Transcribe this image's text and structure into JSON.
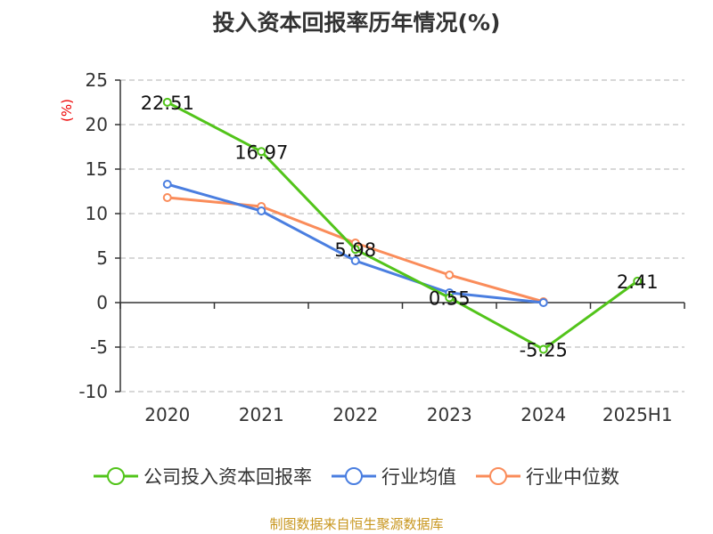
{
  "chart_data": {
    "type": "line",
    "title": "投入资本回报率历年情况(%)",
    "ylabel": "(%)",
    "categories": [
      "2020",
      "2021",
      "2022",
      "2023",
      "2024",
      "2025H1"
    ],
    "ylim": [
      -10,
      25
    ],
    "yticks": [
      25,
      20,
      15,
      10,
      5,
      0,
      -5,
      -10
    ],
    "grid": true,
    "legend_position": "bottom",
    "series": [
      {
        "name": "公司投入资本回报率",
        "color": "#52c41a",
        "values": [
          22.51,
          16.97,
          5.98,
          0.55,
          -5.25,
          2.41
        ],
        "labels": [
          "22.51",
          "16.97",
          "5.98",
          "0.55",
          "-5.25",
          "2.41"
        ]
      },
      {
        "name": "行业均值",
        "color": "#4a7ee0",
        "values": [
          13.3,
          10.3,
          4.7,
          1.1,
          0.0,
          null
        ]
      },
      {
        "name": "行业中位数",
        "color": "#fa8c5a",
        "values": [
          11.8,
          10.8,
          6.7,
          3.1,
          0.1,
          null
        ]
      }
    ]
  },
  "source": "制图数据来自恒生聚源数据库"
}
